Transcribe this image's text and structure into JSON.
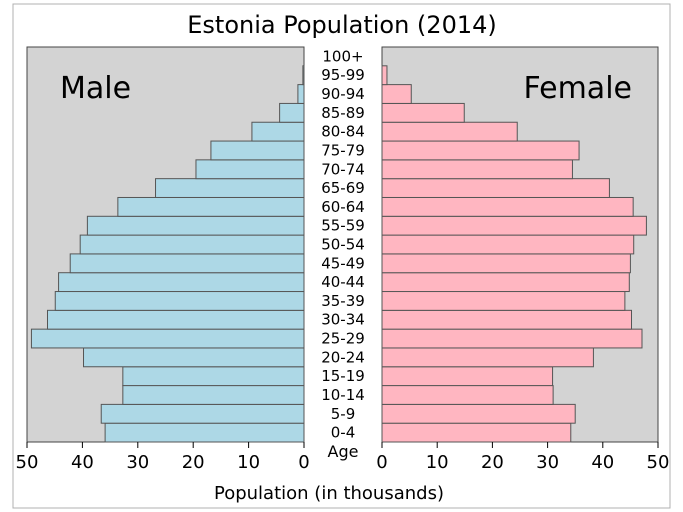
{
  "chart_data": {
    "type": "bar",
    "orientation": "horizontal",
    "layout": "population-pyramid",
    "title": "Estonia Population (2014)",
    "xlabel": "Population (in thousands)",
    "ylabel": "Age",
    "xlim": [
      0,
      50
    ],
    "x_ticks": [
      "50",
      "40",
      "30",
      "20",
      "10",
      "0",
      "0",
      "10",
      "20",
      "30",
      "40",
      "50"
    ],
    "categories": [
      "0-4",
      "5-9",
      "10-14",
      "15-19",
      "20-24",
      "25-29",
      "30-34",
      "35-39",
      "40-44",
      "45-49",
      "50-54",
      "55-59",
      "60-64",
      "65-69",
      "70-74",
      "75-79",
      "80-84",
      "85-89",
      "90-94",
      "95-99",
      "100+"
    ],
    "series": [
      {
        "name": "Male",
        "color": "#add8e6",
        "values": [
          35.9,
          36.6,
          32.7,
          32.7,
          39.8,
          49.2,
          46.3,
          44.9,
          44.3,
          42.2,
          40.4,
          39.1,
          33.6,
          26.8,
          19.5,
          16.8,
          9.4,
          4.4,
          1.1,
          0.2,
          0.0
        ]
      },
      {
        "name": "Female",
        "color": "#ffb6c1",
        "values": [
          34.2,
          35.0,
          31.0,
          30.9,
          38.3,
          47.1,
          45.2,
          44.0,
          44.8,
          45.0,
          45.6,
          47.9,
          45.5,
          41.2,
          34.5,
          35.7,
          24.5,
          14.9,
          5.3,
          0.9,
          0.0
        ]
      }
    ],
    "panel_background": "#d3d3d3",
    "bar_edge_color": "#555555",
    "grid": false,
    "legend": "panel labels top-left and top-right"
  }
}
